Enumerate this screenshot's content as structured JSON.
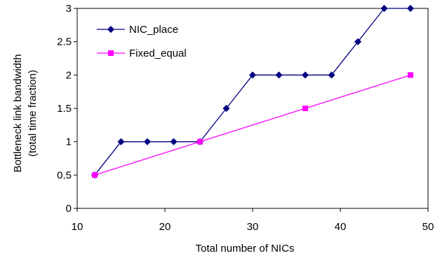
{
  "chart_data": {
    "type": "line",
    "xlabel": "Total number of NICs",
    "ylabel_lines": [
      "Bottleneck link bandwidth",
      "(total time fraction)"
    ],
    "xlim": [
      10,
      50
    ],
    "ylim": [
      0,
      3
    ],
    "xticks": [
      "10",
      "20",
      "30",
      "40",
      "50"
    ],
    "yticks": [
      "0",
      "0.5",
      "1",
      "1.5",
      "2",
      "2.5",
      "3"
    ],
    "grid": false,
    "legend_position": "top-left",
    "series": [
      {
        "name": "NIC_place",
        "color": "#000080",
        "marker": "diamond",
        "x": [
          12,
          15,
          18,
          21,
          24,
          27,
          30,
          33,
          36,
          39,
          42,
          45,
          48
        ],
        "y": [
          0.5,
          1,
          1,
          1,
          1,
          1.5,
          2,
          2,
          2,
          2,
          2.5,
          3,
          3
        ]
      },
      {
        "name": "Fixed_equal",
        "color": "#FF00FF",
        "marker": "square",
        "x": [
          12,
          24,
          36,
          48
        ],
        "y": [
          0.5,
          1,
          1.5,
          2
        ]
      }
    ]
  }
}
